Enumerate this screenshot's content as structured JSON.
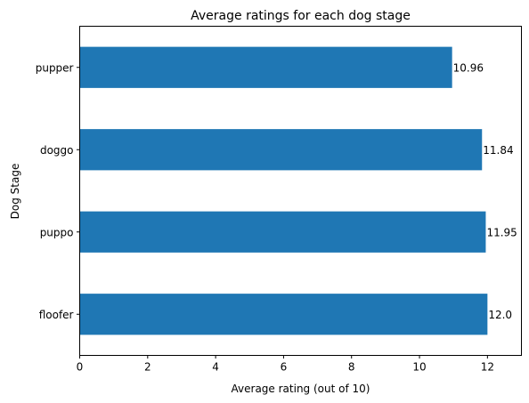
{
  "chart_data": {
    "type": "bar",
    "orientation": "horizontal",
    "title": "Average ratings for each dog stage",
    "xlabel": "Average rating (out of 10)",
    "ylabel": "Dog Stage",
    "categories": [
      "pupper",
      "doggo",
      "puppo",
      "floofer"
    ],
    "values": [
      10.96,
      11.84,
      11.95,
      12.0
    ],
    "data_labels": [
      "10.96",
      "11.84",
      "11.95",
      "12.0"
    ],
    "xlim": [
      0,
      13
    ],
    "xticks": [
      0,
      2,
      4,
      6,
      8,
      10,
      12
    ],
    "xtick_labels": [
      "0",
      "2",
      "4",
      "6",
      "8",
      "10",
      "12"
    ],
    "grid": false,
    "bar_color": "#1f77b4"
  }
}
